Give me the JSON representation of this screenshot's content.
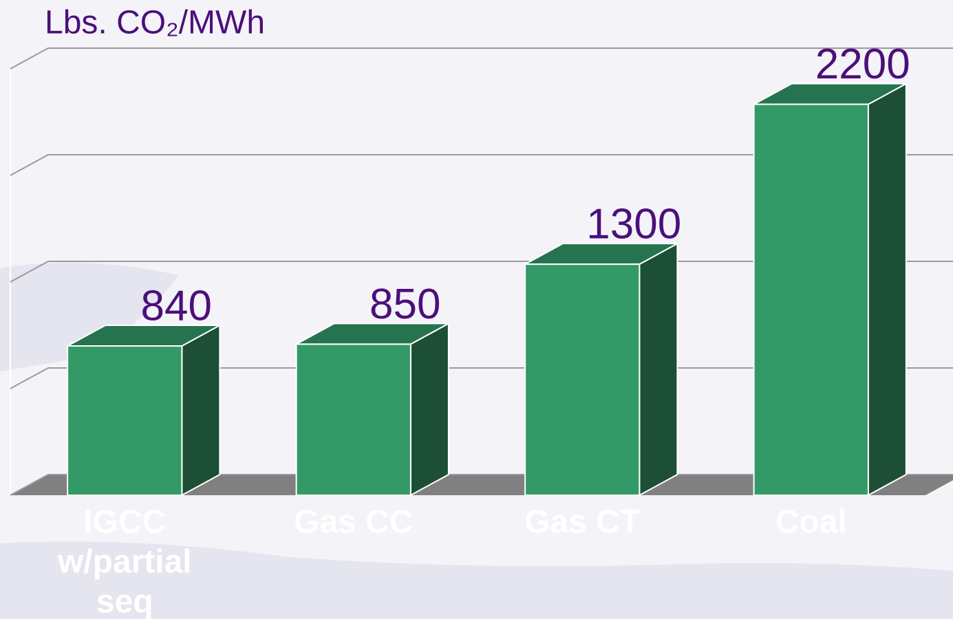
{
  "chart_data": {
    "type": "bar3d",
    "title": "Lbs. CO₂/MWh",
    "categories": [
      [
        "IGCC",
        "w/partial",
        "seq"
      ],
      [
        "Gas CC"
      ],
      [
        "Gas CT"
      ],
      [
        "Coal"
      ]
    ],
    "values": [
      840,
      850,
      1300,
      2200
    ],
    "colors": {
      "front": "#339966",
      "top": "#267350",
      "side": "#1c4f35"
    },
    "ylim": [
      0,
      2400
    ],
    "yticks": [
      0,
      600,
      1200,
      1800,
      2400
    ],
    "grid": true
  }
}
